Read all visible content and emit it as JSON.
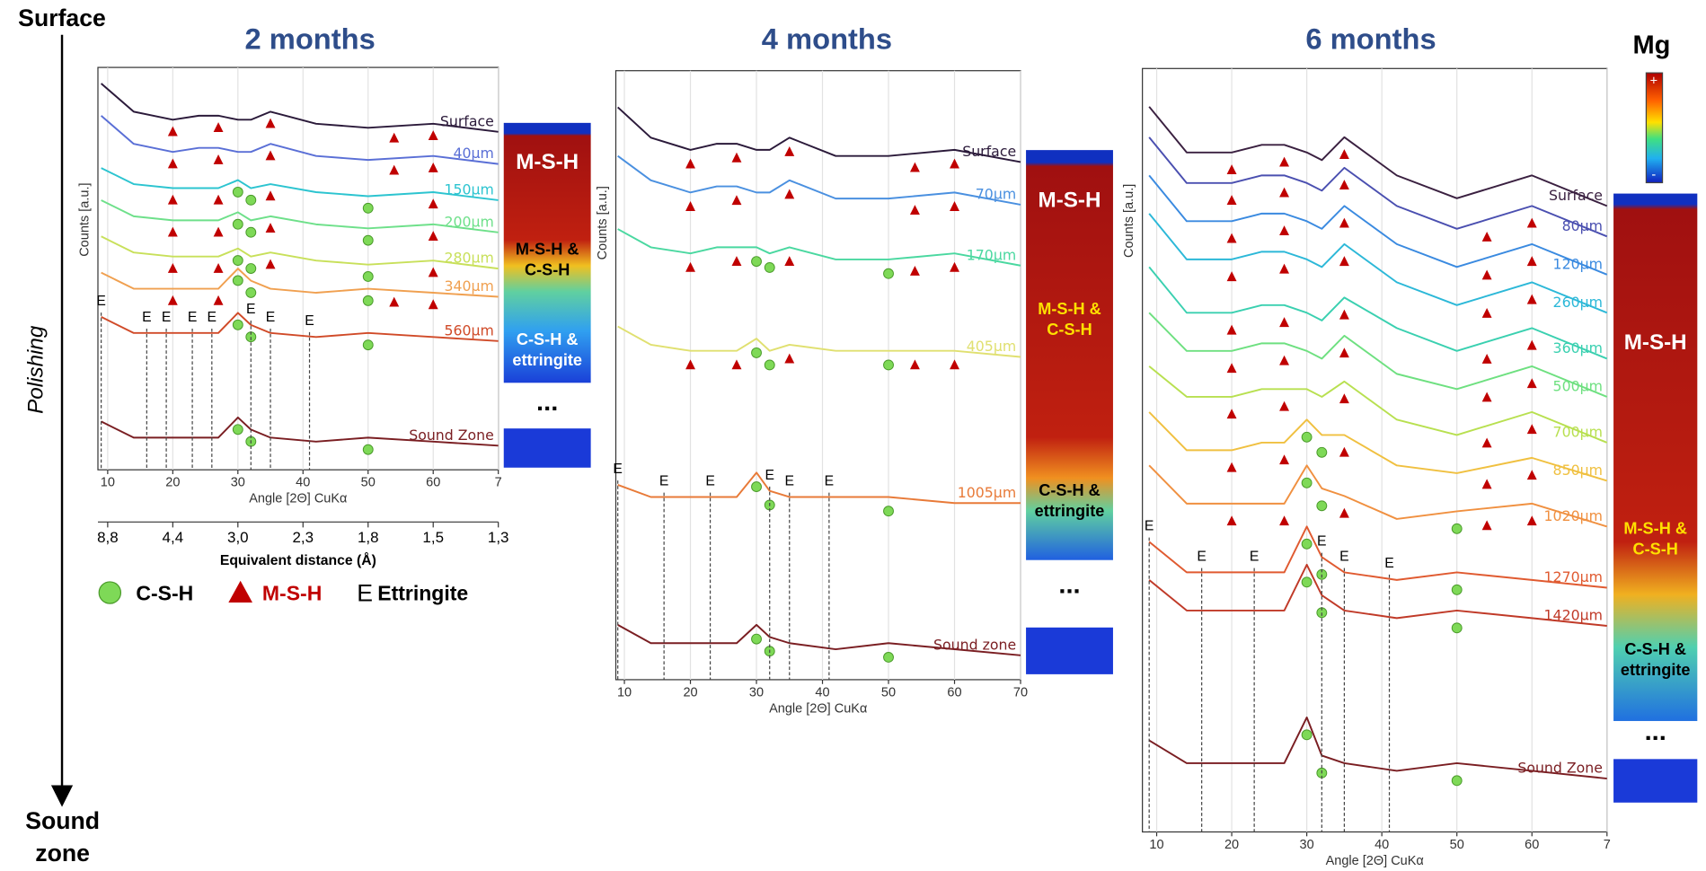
{
  "depth_axis": {
    "top": "Surface",
    "middle": "Polishing",
    "bottom": "Sound zone"
  },
  "legend": {
    "csh": "C-S-H",
    "msh": "M-S-H",
    "ettringite_symbol": "E",
    "ettringite": "Ettringite"
  },
  "colorbar": {
    "label": "Mg",
    "max": "+",
    "min": "-"
  },
  "ellipsis": "...",
  "chart_data": [
    {
      "type": "line",
      "title": "2 months",
      "xlabel": "Angle [2Θ] CuKα",
      "ylabel": "Counts [a.u.]",
      "xlim": [
        8.5,
        70
      ],
      "ylim": [
        0,
        100
      ],
      "grid": true,
      "xticks": [
        10,
        20,
        30,
        40,
        50,
        60,
        {
          "value": 70,
          "label": "7"
        }
      ],
      "x2label": "Equivalent distance (Å)",
      "x2ticks": [
        {
          "value": 10,
          "label": "8,8"
        },
        {
          "value": 20,
          "label": "4,4"
        },
        {
          "value": 30,
          "label": "3,0"
        },
        {
          "value": 40,
          "label": "2,3"
        },
        {
          "value": 50,
          "label": "1,8"
        },
        {
          "value": 60,
          "label": "1,5"
        },
        {
          "value": 70,
          "label": "1,3"
        }
      ],
      "x": [
        9,
        14,
        20,
        24,
        27,
        30,
        32,
        35,
        42,
        50,
        60,
        70
      ],
      "series": [
        {
          "name": "Surface",
          "color": "#2b1a3a",
          "values": [
            96,
            89,
            87,
            88,
            88,
            87,
            87,
            89,
            86,
            85,
            86,
            84
          ],
          "msh": [
            20,
            27,
            35,
            54,
            60
          ],
          "csh": []
        },
        {
          "name": "40µm",
          "color": "#5a6fd6",
          "values": [
            88,
            81,
            79,
            80,
            80,
            79,
            79,
            81,
            78,
            77,
            78,
            76
          ],
          "msh": [
            20,
            27,
            35,
            54,
            60
          ],
          "csh": []
        },
        {
          "name": "150µm",
          "color": "#2cc4d0",
          "values": [
            75,
            71,
            70,
            70,
            70,
            72,
            70,
            71,
            69,
            68,
            69,
            67
          ],
          "msh": [
            20,
            27,
            35,
            60
          ],
          "csh": [
            30,
            32,
            50
          ]
        },
        {
          "name": "200µm",
          "color": "#6ee08a",
          "values": [
            67,
            63,
            62,
            62,
            62,
            64,
            62,
            63,
            61,
            60,
            61,
            59
          ],
          "msh": [
            20,
            27,
            35,
            60
          ],
          "csh": [
            30,
            32,
            50
          ]
        },
        {
          "name": "280µm",
          "color": "#c8e05a",
          "values": [
            58,
            54,
            53,
            53,
            53,
            55,
            53,
            54,
            52,
            51,
            52,
            50
          ],
          "msh": [
            20,
            27,
            35,
            60
          ],
          "csh": [
            30,
            32,
            50
          ]
        },
        {
          "name": "340µm",
          "color": "#f0a050",
          "values": [
            49,
            45,
            45,
            45,
            45,
            50,
            47,
            45,
            44,
            45,
            44,
            43
          ],
          "msh": [
            20,
            27,
            54,
            60
          ],
          "csh": [
            30,
            32,
            50
          ]
        },
        {
          "name": "560µm",
          "color": "#d04a28",
          "values": [
            38,
            34,
            34,
            34,
            34,
            39,
            36,
            34,
            33,
            34,
            33,
            32
          ],
          "msh": [],
          "csh": [
            30,
            32,
            50
          ]
        },
        {
          "name": "Sound Zone",
          "color": "#7a1e22",
          "values": [
            12,
            8,
            8,
            8,
            8,
            13,
            10,
            8,
            7,
            8,
            7,
            6
          ],
          "msh": [],
          "csh": [
            30,
            32,
            50
          ]
        }
      ],
      "ettringite_x": [
        9,
        16,
        19,
        23,
        26,
        32,
        35,
        41
      ],
      "strip_labels": [
        [
          "M-S-H"
        ],
        [
          "M-S-H &",
          "C-S-H"
        ],
        [
          "C-S-H &",
          "ettringite"
        ]
      ]
    },
    {
      "type": "line",
      "title": "4 months",
      "xlabel": "Angle [2Θ] CuKα",
      "ylabel": "Counts [a.u.]",
      "xlim": [
        8.7,
        70
      ],
      "ylim": [
        0,
        100
      ],
      "grid": true,
      "xticks": [
        10,
        20,
        30,
        40,
        50,
        60,
        70
      ],
      "x": [
        9,
        14,
        20,
        24,
        27,
        30,
        32,
        35,
        42,
        50,
        60,
        70
      ],
      "series": [
        {
          "name": "Surface",
          "color": "#2b1a3a",
          "values": [
            94,
            89,
            87,
            88,
            88,
            87,
            87,
            89,
            86,
            86,
            87,
            85
          ],
          "msh": [
            20,
            27,
            35,
            54,
            60
          ],
          "csh": []
        },
        {
          "name": "70µm",
          "color": "#4a90e0",
          "values": [
            86,
            82,
            80,
            81,
            81,
            80,
            80,
            82,
            79,
            79,
            80,
            78
          ],
          "msh": [
            20,
            27,
            35,
            54,
            60
          ],
          "csh": []
        },
        {
          "name": "170µm",
          "color": "#4ad8a0",
          "values": [
            74,
            71,
            70,
            71,
            71,
            71,
            70,
            71,
            69,
            69,
            70,
            68
          ],
          "msh": [
            20,
            27,
            35,
            54,
            60
          ],
          "csh": [
            30,
            32,
            50
          ]
        },
        {
          "name": "405µm",
          "color": "#e0e070",
          "values": [
            58,
            55,
            54,
            54,
            54,
            56,
            54,
            55,
            54,
            54,
            54,
            53
          ],
          "msh": [
            20,
            27,
            35,
            54,
            60
          ],
          "csh": [
            30,
            32,
            50
          ]
        },
        {
          "name": "1005µm",
          "color": "#e87a38",
          "values": [
            32,
            30,
            30,
            30,
            30,
            34,
            31,
            30,
            30,
            30,
            29,
            29
          ],
          "msh": [],
          "csh": [
            30,
            32,
            50
          ]
        },
        {
          "name": "Sound zone",
          "color": "#7a1e22",
          "values": [
            9,
            6,
            6,
            6,
            6,
            9,
            7,
            6,
            5,
            6,
            5,
            4
          ],
          "msh": [],
          "csh": [
            30,
            32,
            50
          ]
        }
      ],
      "ettringite_x": [
        9,
        16,
        23,
        32,
        35,
        41
      ],
      "strip_labels": [
        [
          "M-S-H"
        ],
        [
          "M-S-H &",
          "C-S-H"
        ],
        [
          "C-S-H &",
          "ettringite"
        ]
      ]
    },
    {
      "type": "line",
      "title": "6 months",
      "xlabel": "Angle [2Θ] CuKα",
      "ylabel": "Counts [a.u.]",
      "xlim": [
        8.1,
        70
      ],
      "ylim": [
        0,
        100
      ],
      "grid": true,
      "xticks": [
        10,
        20,
        30,
        40,
        50,
        60,
        {
          "value": 70,
          "label": "7"
        }
      ],
      "x": [
        9,
        14,
        20,
        24,
        27,
        30,
        32,
        35,
        42,
        50,
        60,
        70
      ],
      "series": [
        {
          "name": "Surface",
          "color": "#3a2040",
          "values": [
            95,
            89,
            89,
            90,
            90,
            89,
            88,
            91,
            86,
            83,
            86,
            82
          ],
          "msh": [
            20,
            27,
            35
          ],
          "csh": []
        },
        {
          "name": "80µm",
          "color": "#4a4fb0",
          "values": [
            91,
            85,
            85,
            86,
            86,
            85,
            84,
            87,
            82,
            79,
            82,
            78
          ],
          "msh": [
            20,
            27,
            35,
            54,
            60
          ],
          "csh": []
        },
        {
          "name": "120µm",
          "color": "#3a8ae0",
          "values": [
            86,
            80,
            80,
            81,
            81,
            80,
            79,
            82,
            77,
            74,
            77,
            73
          ],
          "msh": [
            20,
            27,
            35,
            54,
            60
          ],
          "csh": []
        },
        {
          "name": "260µm",
          "color": "#2cb8d8",
          "values": [
            81,
            75,
            75,
            76,
            76,
            75,
            74,
            77,
            72,
            69,
            72,
            68
          ],
          "msh": [
            20,
            27,
            35,
            54,
            60
          ],
          "csh": []
        },
        {
          "name": "360µm",
          "color": "#3ad0b0",
          "values": [
            74,
            68,
            68,
            69,
            69,
            68,
            67,
            70,
            66,
            63,
            66,
            62
          ],
          "msh": [
            20,
            27,
            35,
            54,
            60
          ],
          "csh": []
        },
        {
          "name": "500µm",
          "color": "#6ee080",
          "values": [
            68,
            63,
            63,
            64,
            64,
            63,
            62,
            65,
            60,
            58,
            61,
            57
          ],
          "msh": [
            20,
            27,
            35,
            54,
            60
          ],
          "csh": []
        },
        {
          "name": "700µm",
          "color": "#b8e050",
          "values": [
            61,
            57,
            57,
            58,
            58,
            58,
            57,
            59,
            54,
            52,
            55,
            51
          ],
          "msh": [
            20,
            27,
            35,
            54,
            60
          ],
          "csh": []
        },
        {
          "name": "850µm",
          "color": "#f0c040",
          "values": [
            55,
            50,
            50,
            51,
            51,
            54,
            52,
            52,
            48,
            47,
            49,
            46
          ],
          "msh": [
            20,
            27,
            35,
            54,
            60
          ],
          "csh": [
            30,
            32
          ]
        },
        {
          "name": "1020µm",
          "color": "#f09040",
          "values": [
            48,
            43,
            43,
            43,
            43,
            48,
            45,
            44,
            41,
            42,
            43,
            40
          ],
          "msh": [
            20,
            27,
            35,
            54,
            60
          ],
          "csh": [
            30,
            32,
            50
          ]
        },
        {
          "name": "1270µm",
          "color": "#e05a30",
          "values": [
            38,
            34,
            34,
            34,
            34,
            40,
            36,
            34,
            33,
            34,
            33,
            32
          ],
          "msh": [],
          "csh": [
            30,
            32,
            50
          ]
        },
        {
          "name": "1420µm",
          "color": "#c03a28",
          "values": [
            33,
            29,
            29,
            29,
            29,
            35,
            31,
            29,
            28,
            29,
            28,
            27
          ],
          "msh": [],
          "csh": [
            30,
            32,
            50
          ]
        },
        {
          "name": "Sound Zone",
          "color": "#7a1e22",
          "values": [
            12,
            9,
            9,
            9,
            9,
            15,
            10,
            9,
            8,
            9,
            8,
            7
          ],
          "msh": [],
          "csh": [
            30,
            32,
            50
          ]
        }
      ],
      "ettringite_x": [
        9,
        16,
        23,
        32,
        35,
        41
      ],
      "strip_labels": [
        [
          "M-S-H"
        ],
        [
          "M-S-H &",
          "C-S-H"
        ],
        [
          "C-S-H &",
          "ettringite"
        ]
      ]
    }
  ]
}
